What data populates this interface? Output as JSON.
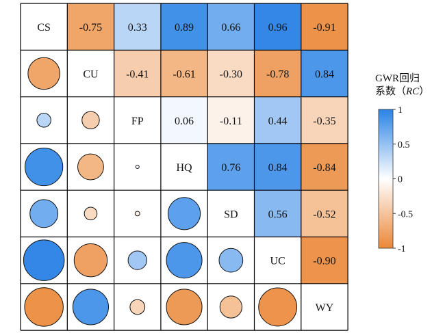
{
  "chart_data": {
    "type": "heatmap",
    "variables": [
      "CS",
      "CU",
      "FP",
      "HQ",
      "SD",
      "UC",
      "WY"
    ],
    "matrix": [
      [
        1,
        -0.75,
        0.33,
        0.89,
        0.66,
        0.96,
        -0.91
      ],
      [
        -0.75,
        1,
        -0.41,
        -0.61,
        -0.3,
        -0.78,
        0.84
      ],
      [
        0.33,
        -0.41,
        1,
        0.06,
        -0.11,
        0.44,
        -0.35
      ],
      [
        0.89,
        -0.61,
        0.06,
        1,
        0.76,
        0.84,
        -0.84
      ],
      [
        0.66,
        -0.3,
        -0.11,
        0.76,
        1,
        0.56,
        -0.52
      ],
      [
        0.96,
        -0.78,
        0.44,
        0.84,
        0.56,
        1,
        -0.9
      ],
      [
        -0.91,
        0.84,
        -0.35,
        -0.84,
        -0.52,
        -0.9,
        1
      ]
    ],
    "upper_triangle": "colored cells with values",
    "lower_triangle": "circles sized by |RC|",
    "colorbar": {
      "title_line1": "GWR回归",
      "title_line2_prefix": "系数（",
      "title_line2_italic": "RC",
      "title_line2_suffix": "）",
      "ticks": [
        "1",
        "0.5",
        "0",
        "-0.5",
        "-1"
      ],
      "range": [
        -1,
        1
      ]
    },
    "colors": {
      "positive": "#2a83e6",
      "neutral": "#ffffff",
      "negative": "#eb8737",
      "grid": "#000000"
    }
  }
}
